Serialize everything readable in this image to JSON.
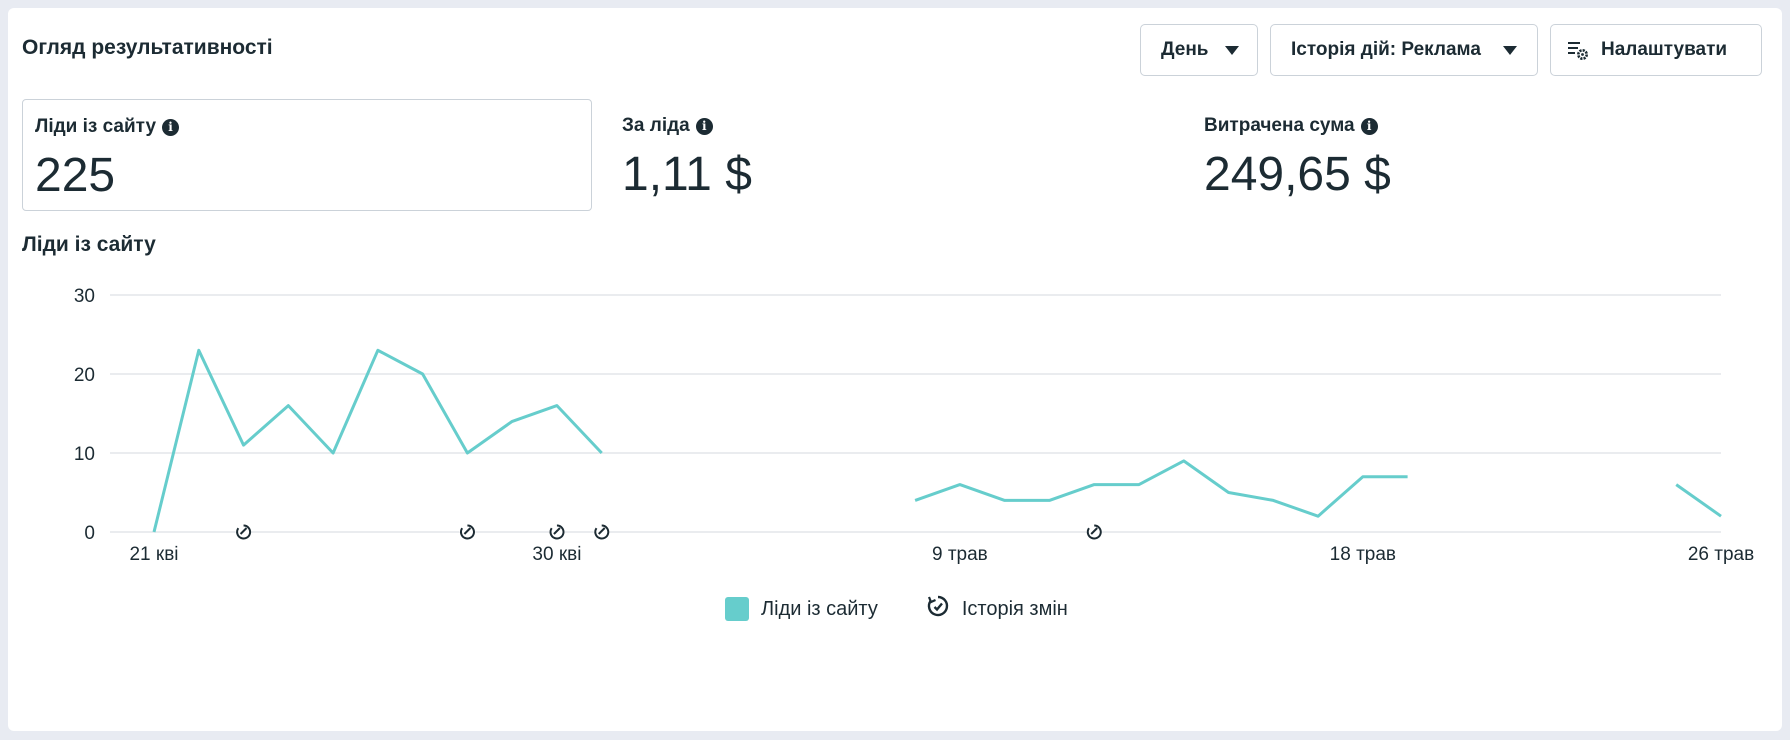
{
  "header": {
    "title": "Огляд результативності"
  },
  "controls": {
    "day_label": "День",
    "history_label": "Історія дій: Реклама",
    "settings_label": "Налаштувати"
  },
  "metrics": [
    {
      "label": "Ліди із сайту",
      "value": "225"
    },
    {
      "label": "За ліда",
      "value": "1,11 $"
    },
    {
      "label": "Витрачена сума",
      "value": "249,65 $"
    }
  ],
  "colors": {
    "series": "#66cdcc",
    "grid": "#e3e6ea",
    "text": "#1c2b33"
  },
  "chart_data": {
    "type": "line",
    "title": "Ліди із сайту",
    "ylim": [
      0,
      30
    ],
    "yticks": [
      0,
      10,
      20,
      30
    ],
    "x_tick_labels": [
      {
        "day": 0,
        "label": "21 кві"
      },
      {
        "day": 9,
        "label": "30 кві"
      },
      {
        "day": 18,
        "label": "9 трав"
      },
      {
        "day": 27,
        "label": "18 трав"
      },
      {
        "day": 35,
        "label": "26 трав"
      }
    ],
    "series": [
      {
        "name": "Ліди із сайту",
        "points": [
          [
            0,
            0
          ],
          [
            1,
            23
          ],
          [
            2,
            11
          ],
          [
            3,
            16
          ],
          [
            4,
            10
          ],
          [
            5,
            23
          ],
          [
            6,
            20
          ],
          [
            7,
            10
          ],
          [
            8,
            14
          ],
          [
            9,
            16
          ],
          [
            10,
            10
          ],
          [
            11,
            null
          ],
          [
            12,
            null
          ],
          [
            13,
            null
          ],
          [
            14,
            null
          ],
          [
            15,
            null
          ],
          [
            16,
            null
          ],
          [
            17,
            4
          ],
          [
            18,
            6
          ],
          [
            19,
            4
          ],
          [
            20,
            4
          ],
          [
            21,
            6
          ],
          [
            22,
            6
          ],
          [
            23,
            9
          ],
          [
            24,
            5
          ],
          [
            25,
            4
          ],
          [
            26,
            2
          ],
          [
            27,
            7
          ],
          [
            28,
            7
          ],
          [
            29,
            null
          ],
          [
            30,
            null
          ],
          [
            31,
            null
          ],
          [
            32,
            null
          ],
          [
            33,
            null
          ],
          [
            34,
            6
          ],
          [
            35,
            2
          ]
        ]
      }
    ],
    "change_history_days": [
      2,
      7,
      9,
      10,
      21
    ],
    "grid": true,
    "legend": [
      {
        "name": "Ліди із сайту",
        "kind": "swatch"
      },
      {
        "name": "Історія змін",
        "kind": "history-icon"
      }
    ],
    "legend_position": "bottom-center"
  }
}
